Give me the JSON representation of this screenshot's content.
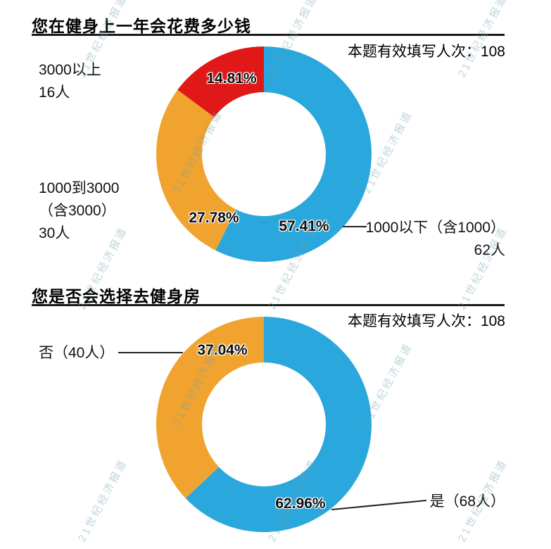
{
  "watermark": {
    "text": "21世纪经济报道"
  },
  "sections": [
    {
      "title": "您在健身上一年会花费多少钱",
      "note": "本题有效填写人次：108",
      "labels": {
        "top_left_line1": "3000以上",
        "top_left_line2": "16人",
        "mid_left_line1": "1000到3000",
        "mid_left_line2": "（含3000）",
        "mid_left_line3": "30人",
        "right_line1": "1000以下（含1000）",
        "right_line2": "62人"
      }
    },
    {
      "title": "您是否会选择去健身房",
      "note": "本题有效填写人次：108",
      "labels": {
        "left": "否（40人）",
        "right": "是（68人）"
      }
    }
  ],
  "chart_data": [
    {
      "type": "pie",
      "donut": true,
      "title": "您在健身上一年会花费多少钱",
      "valid_responses": 108,
      "start_angle_deg": 0,
      "clockwise": true,
      "slices": [
        {
          "label": "1000以下（含1000）",
          "count": 62,
          "value": 57.41,
          "pct_label": "57.41%",
          "color": "#2AA7DC"
        },
        {
          "label": "1000到3000（含3000）",
          "count": 30,
          "value": 27.78,
          "pct_label": "27.78%",
          "color": "#F1A32F"
        },
        {
          "label": "3000以上",
          "count": 16,
          "value": 14.81,
          "pct_label": "14.81%",
          "color": "#E01818"
        }
      ]
    },
    {
      "type": "pie",
      "donut": true,
      "title": "您是否会选择去健身房",
      "valid_responses": 108,
      "start_angle_deg": 0,
      "clockwise": true,
      "slices": [
        {
          "label": "是",
          "count": 68,
          "value": 62.96,
          "pct_label": "62.96%",
          "color": "#2AA7DC"
        },
        {
          "label": "否",
          "count": 40,
          "value": 37.04,
          "pct_label": "37.04%",
          "color": "#F1A32F"
        }
      ]
    }
  ]
}
